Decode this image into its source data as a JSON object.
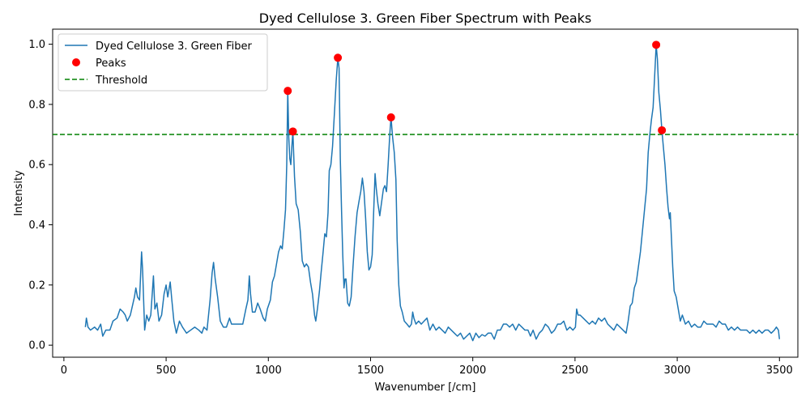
{
  "chart_data": {
    "type": "line",
    "title": "Dyed Cellulose 3. Green Fiber Spectrum with Peaks",
    "xlabel": "Wavenumber [/cm]",
    "ylabel": "Intensity",
    "xlim": [
      -55,
      3590
    ],
    "ylim": [
      -0.04,
      1.05
    ],
    "xticks": [
      0,
      500,
      1000,
      1500,
      2000,
      2500,
      3000,
      3500
    ],
    "yticks": [
      0.0,
      0.2,
      0.4,
      0.6,
      0.8,
      1.0
    ],
    "grid": false,
    "legend_position": "top-left",
    "series": [
      {
        "name": "Dyed Cellulose 3. Green Fiber",
        "color": "#1f77b4",
        "points": [
          [
            105,
            0.06
          ],
          [
            110,
            0.09
          ],
          [
            118,
            0.06
          ],
          [
            130,
            0.05
          ],
          [
            150,
            0.06
          ],
          [
            165,
            0.05
          ],
          [
            180,
            0.07
          ],
          [
            190,
            0.03
          ],
          [
            205,
            0.05
          ],
          [
            225,
            0.05
          ],
          [
            240,
            0.08
          ],
          [
            260,
            0.09
          ],
          [
            275,
            0.12
          ],
          [
            290,
            0.11
          ],
          [
            300,
            0.1
          ],
          [
            310,
            0.08
          ],
          [
            325,
            0.1
          ],
          [
            335,
            0.13
          ],
          [
            345,
            0.16
          ],
          [
            352,
            0.19
          ],
          [
            360,
            0.16
          ],
          [
            370,
            0.15
          ],
          [
            380,
            0.31
          ],
          [
            385,
            0.25
          ],
          [
            395,
            0.05
          ],
          [
            405,
            0.1
          ],
          [
            415,
            0.08
          ],
          [
            425,
            0.1
          ],
          [
            438,
            0.23
          ],
          [
            445,
            0.12
          ],
          [
            455,
            0.14
          ],
          [
            465,
            0.08
          ],
          [
            478,
            0.1
          ],
          [
            490,
            0.17
          ],
          [
            500,
            0.2
          ],
          [
            508,
            0.16
          ],
          [
            520,
            0.21
          ],
          [
            528,
            0.15
          ],
          [
            538,
            0.08
          ],
          [
            550,
            0.04
          ],
          [
            565,
            0.08
          ],
          [
            580,
            0.06
          ],
          [
            600,
            0.04
          ],
          [
            620,
            0.05
          ],
          [
            640,
            0.06
          ],
          [
            660,
            0.05
          ],
          [
            675,
            0.04
          ],
          [
            685,
            0.06
          ],
          [
            700,
            0.05
          ],
          [
            715,
            0.15
          ],
          [
            725,
            0.24
          ],
          [
            732,
            0.275
          ],
          [
            740,
            0.22
          ],
          [
            752,
            0.16
          ],
          [
            765,
            0.08
          ],
          [
            780,
            0.06
          ],
          [
            795,
            0.06
          ],
          [
            810,
            0.09
          ],
          [
            820,
            0.07
          ],
          [
            835,
            0.07
          ],
          [
            855,
            0.07
          ],
          [
            875,
            0.07
          ],
          [
            890,
            0.12
          ],
          [
            900,
            0.15
          ],
          [
            907,
            0.23
          ],
          [
            913,
            0.17
          ],
          [
            922,
            0.11
          ],
          [
            935,
            0.11
          ],
          [
            948,
            0.14
          ],
          [
            960,
            0.12
          ],
          [
            975,
            0.09
          ],
          [
            985,
            0.08
          ],
          [
            995,
            0.12
          ],
          [
            1010,
            0.15
          ],
          [
            1020,
            0.21
          ],
          [
            1030,
            0.23
          ],
          [
            1040,
            0.27
          ],
          [
            1050,
            0.31
          ],
          [
            1060,
            0.33
          ],
          [
            1068,
            0.32
          ],
          [
            1076,
            0.38
          ],
          [
            1084,
            0.45
          ],
          [
            1090,
            0.6
          ],
          [
            1095,
            0.845
          ],
          [
            1100,
            0.69
          ],
          [
            1105,
            0.62
          ],
          [
            1110,
            0.6
          ],
          [
            1115,
            0.66
          ],
          [
            1120,
            0.71
          ],
          [
            1128,
            0.56
          ],
          [
            1136,
            0.47
          ],
          [
            1146,
            0.45
          ],
          [
            1156,
            0.38
          ],
          [
            1166,
            0.28
          ],
          [
            1176,
            0.26
          ],
          [
            1186,
            0.27
          ],
          [
            1196,
            0.26
          ],
          [
            1206,
            0.21
          ],
          [
            1216,
            0.17
          ],
          [
            1226,
            0.1
          ],
          [
            1232,
            0.08
          ],
          [
            1240,
            0.12
          ],
          [
            1250,
            0.18
          ],
          [
            1258,
            0.24
          ],
          [
            1268,
            0.31
          ],
          [
            1276,
            0.37
          ],
          [
            1284,
            0.36
          ],
          [
            1292,
            0.44
          ],
          [
            1298,
            0.58
          ],
          [
            1306,
            0.6
          ],
          [
            1314,
            0.66
          ],
          [
            1324,
            0.78
          ],
          [
            1332,
            0.88
          ],
          [
            1340,
            0.955
          ],
          [
            1346,
            0.92
          ],
          [
            1352,
            0.62
          ],
          [
            1358,
            0.45
          ],
          [
            1364,
            0.3
          ],
          [
            1370,
            0.19
          ],
          [
            1375,
            0.22
          ],
          [
            1380,
            0.22
          ],
          [
            1388,
            0.14
          ],
          [
            1396,
            0.13
          ],
          [
            1405,
            0.16
          ],
          [
            1414,
            0.26
          ],
          [
            1424,
            0.36
          ],
          [
            1434,
            0.44
          ],
          [
            1444,
            0.48
          ],
          [
            1452,
            0.51
          ],
          [
            1460,
            0.555
          ],
          [
            1468,
            0.51
          ],
          [
            1476,
            0.42
          ],
          [
            1484,
            0.31
          ],
          [
            1492,
            0.25
          ],
          [
            1500,
            0.26
          ],
          [
            1508,
            0.3
          ],
          [
            1515,
            0.44
          ],
          [
            1522,
            0.57
          ],
          [
            1528,
            0.52
          ],
          [
            1536,
            0.47
          ],
          [
            1545,
            0.43
          ],
          [
            1555,
            0.48
          ],
          [
            1563,
            0.52
          ],
          [
            1570,
            0.53
          ],
          [
            1578,
            0.51
          ],
          [
            1586,
            0.6
          ],
          [
            1594,
            0.7
          ],
          [
            1600,
            0.757
          ],
          [
            1608,
            0.69
          ],
          [
            1616,
            0.64
          ],
          [
            1624,
            0.55
          ],
          [
            1630,
            0.35
          ],
          [
            1638,
            0.2
          ],
          [
            1646,
            0.13
          ],
          [
            1655,
            0.11
          ],
          [
            1665,
            0.08
          ],
          [
            1678,
            0.07
          ],
          [
            1690,
            0.06
          ],
          [
            1700,
            0.07
          ],
          [
            1706,
            0.11
          ],
          [
            1712,
            0.09
          ],
          [
            1722,
            0.07
          ],
          [
            1735,
            0.08
          ],
          [
            1748,
            0.07
          ],
          [
            1762,
            0.08
          ],
          [
            1776,
            0.09
          ],
          [
            1790,
            0.05
          ],
          [
            1805,
            0.07
          ],
          [
            1820,
            0.05
          ],
          [
            1835,
            0.06
          ],
          [
            1850,
            0.05
          ],
          [
            1865,
            0.04
          ],
          [
            1880,
            0.06
          ],
          [
            1895,
            0.05
          ],
          [
            1910,
            0.04
          ],
          [
            1925,
            0.03
          ],
          [
            1940,
            0.04
          ],
          [
            1955,
            0.02
          ],
          [
            1970,
            0.03
          ],
          [
            1985,
            0.04
          ],
          [
            2000,
            0.015
          ],
          [
            2015,
            0.04
          ],
          [
            2030,
            0.025
          ],
          [
            2045,
            0.035
          ],
          [
            2060,
            0.03
          ],
          [
            2075,
            0.04
          ],
          [
            2090,
            0.04
          ],
          [
            2105,
            0.02
          ],
          [
            2120,
            0.05
          ],
          [
            2135,
            0.05
          ],
          [
            2150,
            0.07
          ],
          [
            2165,
            0.07
          ],
          [
            2180,
            0.06
          ],
          [
            2195,
            0.07
          ],
          [
            2210,
            0.05
          ],
          [
            2225,
            0.07
          ],
          [
            2240,
            0.06
          ],
          [
            2255,
            0.05
          ],
          [
            2270,
            0.05
          ],
          [
            2282,
            0.03
          ],
          [
            2295,
            0.05
          ],
          [
            2310,
            0.02
          ],
          [
            2325,
            0.04
          ],
          [
            2340,
            0.05
          ],
          [
            2355,
            0.07
          ],
          [
            2370,
            0.06
          ],
          [
            2385,
            0.04
          ],
          [
            2400,
            0.05
          ],
          [
            2415,
            0.07
          ],
          [
            2430,
            0.07
          ],
          [
            2445,
            0.08
          ],
          [
            2460,
            0.05
          ],
          [
            2475,
            0.06
          ],
          [
            2490,
            0.05
          ],
          [
            2502,
            0.06
          ],
          [
            2508,
            0.12
          ],
          [
            2515,
            0.1
          ],
          [
            2525,
            0.1
          ],
          [
            2540,
            0.09
          ],
          [
            2555,
            0.08
          ],
          [
            2570,
            0.07
          ],
          [
            2585,
            0.08
          ],
          [
            2600,
            0.07
          ],
          [
            2615,
            0.09
          ],
          [
            2630,
            0.08
          ],
          [
            2645,
            0.09
          ],
          [
            2660,
            0.07
          ],
          [
            2675,
            0.06
          ],
          [
            2690,
            0.05
          ],
          [
            2705,
            0.07
          ],
          [
            2720,
            0.06
          ],
          [
            2735,
            0.05
          ],
          [
            2750,
            0.04
          ],
          [
            2760,
            0.08
          ],
          [
            2770,
            0.13
          ],
          [
            2780,
            0.14
          ],
          [
            2790,
            0.19
          ],
          [
            2800,
            0.21
          ],
          [
            2810,
            0.26
          ],
          [
            2820,
            0.31
          ],
          [
            2830,
            0.38
          ],
          [
            2840,
            0.45
          ],
          [
            2850,
            0.52
          ],
          [
            2858,
            0.64
          ],
          [
            2866,
            0.7
          ],
          [
            2874,
            0.75
          ],
          [
            2882,
            0.79
          ],
          [
            2890,
            0.9
          ],
          [
            2897,
            0.998
          ],
          [
            2903,
            0.95
          ],
          [
            2910,
            0.84
          ],
          [
            2918,
            0.78
          ],
          [
            2925,
            0.714
          ],
          [
            2932,
            0.66
          ],
          [
            2940,
            0.6
          ],
          [
            2948,
            0.52
          ],
          [
            2955,
            0.46
          ],
          [
            2962,
            0.42
          ],
          [
            2966,
            0.44
          ],
          [
            2972,
            0.35
          ],
          [
            2978,
            0.26
          ],
          [
            2985,
            0.18
          ],
          [
            2995,
            0.16
          ],
          [
            3005,
            0.12
          ],
          [
            3015,
            0.08
          ],
          [
            3025,
            0.1
          ],
          [
            3040,
            0.07
          ],
          [
            3055,
            0.08
          ],
          [
            3070,
            0.06
          ],
          [
            3085,
            0.07
          ],
          [
            3100,
            0.06
          ],
          [
            3115,
            0.06
          ],
          [
            3130,
            0.08
          ],
          [
            3145,
            0.07
          ],
          [
            3160,
            0.07
          ],
          [
            3175,
            0.07
          ],
          [
            3190,
            0.06
          ],
          [
            3205,
            0.08
          ],
          [
            3220,
            0.07
          ],
          [
            3235,
            0.07
          ],
          [
            3250,
            0.05
          ],
          [
            3265,
            0.06
          ],
          [
            3280,
            0.05
          ],
          [
            3295,
            0.06
          ],
          [
            3310,
            0.05
          ],
          [
            3325,
            0.05
          ],
          [
            3340,
            0.05
          ],
          [
            3355,
            0.04
          ],
          [
            3370,
            0.05
          ],
          [
            3385,
            0.04
          ],
          [
            3400,
            0.05
          ],
          [
            3415,
            0.04
          ],
          [
            3430,
            0.05
          ],
          [
            3445,
            0.05
          ],
          [
            3460,
            0.04
          ],
          [
            3475,
            0.05
          ],
          [
            3485,
            0.06
          ],
          [
            3495,
            0.05
          ],
          [
            3500,
            0.02
          ]
        ]
      },
      {
        "name": "Peaks",
        "type": "scatter",
        "color": "#ff0000",
        "points": [
          [
            1095,
            0.845
          ],
          [
            1120,
            0.71
          ],
          [
            1340,
            0.955
          ],
          [
            1600,
            0.757
          ],
          [
            2897,
            0.998
          ],
          [
            2925,
            0.714
          ]
        ]
      },
      {
        "name": "Threshold",
        "type": "hline",
        "color": "#008000",
        "y": 0.7
      }
    ]
  }
}
